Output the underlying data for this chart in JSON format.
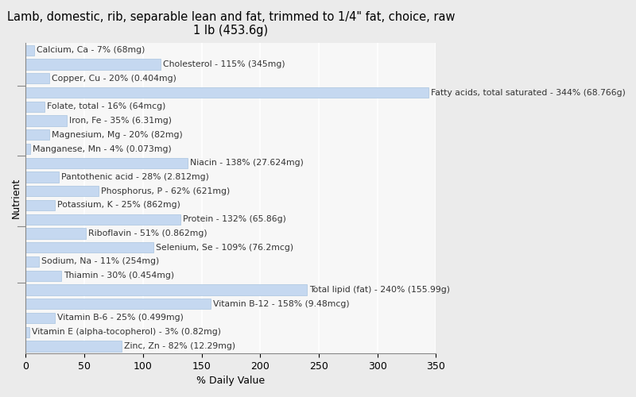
{
  "title": "Lamb, domestic, rib, separable lean and fat, trimmed to 1/4\" fat, choice, raw\n1 lb (453.6g)",
  "xlabel": "% Daily Value",
  "ylabel": "Nutrient",
  "background_color": "#ebebeb",
  "plot_bg_color": "#f7f7f7",
  "bar_color": "#c5d8f0",
  "bar_edge_color": "#a8c4e0",
  "nutrients": [
    {
      "name": "Calcium, Ca - 7% (68mg)",
      "value": 7
    },
    {
      "name": "Cholesterol - 115% (345mg)",
      "value": 115
    },
    {
      "name": "Copper, Cu - 20% (0.404mg)",
      "value": 20
    },
    {
      "name": "Fatty acids, total saturated - 344% (68.766g)",
      "value": 344
    },
    {
      "name": "Folate, total - 16% (64mcg)",
      "value": 16
    },
    {
      "name": "Iron, Fe - 35% (6.31mg)",
      "value": 35
    },
    {
      "name": "Magnesium, Mg - 20% (82mg)",
      "value": 20
    },
    {
      "name": "Manganese, Mn - 4% (0.073mg)",
      "value": 4
    },
    {
      "name": "Niacin - 138% (27.624mg)",
      "value": 138
    },
    {
      "name": "Pantothenic acid - 28% (2.812mg)",
      "value": 28
    },
    {
      "name": "Phosphorus, P - 62% (621mg)",
      "value": 62
    },
    {
      "name": "Potassium, K - 25% (862mg)",
      "value": 25
    },
    {
      "name": "Protein - 132% (65.86g)",
      "value": 132
    },
    {
      "name": "Riboflavin - 51% (0.862mg)",
      "value": 51
    },
    {
      "name": "Selenium, Se - 109% (76.2mcg)",
      "value": 109
    },
    {
      "name": "Sodium, Na - 11% (254mg)",
      "value": 11
    },
    {
      "name": "Thiamin - 30% (0.454mg)",
      "value": 30
    },
    {
      "name": "Total lipid (fat) - 240% (155.99g)",
      "value": 240
    },
    {
      "name": "Vitamin B-12 - 158% (9.48mcg)",
      "value": 158
    },
    {
      "name": "Vitamin B-6 - 25% (0.499mg)",
      "value": 25
    },
    {
      "name": "Vitamin E (alpha-tocopherol) - 3% (0.82mg)",
      "value": 3
    },
    {
      "name": "Zinc, Zn - 82% (12.29mg)",
      "value": 82
    }
  ],
  "xlim": [
    0,
    350
  ],
  "xticks": [
    0,
    50,
    100,
    150,
    200,
    250,
    300,
    350
  ],
  "grid_color": "#ffffff",
  "title_fontsize": 10.5,
  "label_fontsize": 7.8,
  "tick_fontsize": 9,
  "bar_height": 0.75,
  "text_color": "#333333"
}
